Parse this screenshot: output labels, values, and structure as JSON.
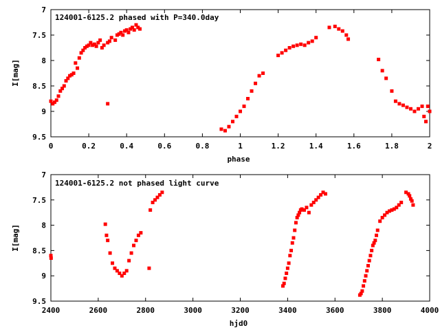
{
  "chart_data": [
    {
      "type": "scatter",
      "title": "124001-6125.2 phased with P=340.0day",
      "xlabel": "phase",
      "ylabel": "I[mag]",
      "xlim": [
        0,
        2
      ],
      "ylim": [
        7,
        9.5
      ],
      "y_inverted": true,
      "xticks": [
        "0",
        "0.2",
        "0.4",
        "0.6",
        "0.8",
        "1",
        "1.2",
        "1.4",
        "1.6",
        "1.8",
        "2"
      ],
      "yticks": [
        "7",
        "7.5",
        "8",
        "8.5",
        "9",
        "9.5"
      ],
      "grid": false,
      "marker_color": "#ff0000",
      "series": [
        {
          "x": [
            0.0,
            0.01,
            0.02,
            0.03,
            0.04,
            0.05,
            0.06,
            0.07,
            0.08,
            0.09,
            0.1,
            0.11,
            0.12,
            0.13,
            0.14,
            0.15,
            0.16,
            0.17,
            0.18,
            0.19,
            0.2,
            0.21,
            0.22,
            0.23,
            0.24,
            0.25,
            0.26,
            0.27,
            0.28,
            0.3,
            0.31,
            0.32,
            0.34,
            0.35,
            0.36,
            0.37,
            0.38,
            0.39,
            0.4,
            0.41,
            0.42,
            0.43,
            0.44,
            0.45,
            0.46,
            0.47,
            0.3,
            0.9,
            0.92,
            0.94,
            0.96,
            0.98,
            1.0,
            1.02,
            1.04,
            1.06,
            1.08,
            1.1,
            1.12,
            1.2,
            1.22,
            1.24,
            1.26,
            1.28,
            1.3,
            1.32,
            1.34,
            1.36,
            1.38,
            1.4,
            1.47,
            1.5,
            1.52,
            1.54,
            1.56,
            1.57,
            1.73,
            1.75,
            1.77,
            1.8,
            1.82,
            1.84,
            1.86,
            1.88,
            1.9,
            1.92,
            1.94,
            1.96,
            1.97,
            1.98,
            1.99,
            2.0
          ],
          "y": [
            8.8,
            8.85,
            8.82,
            8.78,
            8.7,
            8.6,
            8.55,
            8.5,
            8.4,
            8.35,
            8.3,
            8.28,
            8.25,
            8.05,
            8.15,
            7.95,
            7.85,
            7.8,
            7.75,
            7.72,
            7.7,
            7.65,
            7.7,
            7.68,
            7.72,
            7.65,
            7.6,
            7.75,
            7.7,
            7.65,
            7.62,
            7.55,
            7.6,
            7.5,
            7.48,
            7.45,
            7.5,
            7.42,
            7.4,
            7.45,
            7.38,
            7.35,
            7.4,
            7.3,
            7.35,
            7.38,
            8.85,
            9.35,
            9.38,
            9.3,
            9.2,
            9.1,
            9.0,
            8.9,
            8.75,
            8.6,
            8.45,
            8.3,
            8.25,
            7.9,
            7.85,
            7.8,
            7.75,
            7.72,
            7.7,
            7.68,
            7.7,
            7.65,
            7.62,
            7.55,
            7.35,
            7.33,
            7.38,
            7.42,
            7.5,
            7.58,
            7.98,
            8.2,
            8.35,
            8.6,
            8.8,
            8.85,
            8.88,
            8.92,
            8.95,
            9.0,
            8.95,
            8.9,
            9.1,
            9.2,
            8.9,
            9.0
          ]
        }
      ]
    },
    {
      "type": "scatter",
      "title": "124001-6125.2 not phased light curve",
      "xlabel": "hjd0",
      "ylabel": "I[mag]",
      "xlim": [
        2400,
        4000
      ],
      "ylim": [
        7,
        9.5
      ],
      "y_inverted": true,
      "xticks": [
        "2400",
        "2600",
        "2800",
        "3000",
        "3200",
        "3400",
        "3600",
        "3800",
        "4000"
      ],
      "yticks": [
        "7",
        "7.5",
        "8",
        "8.5",
        "9",
        "9.5"
      ],
      "grid": false,
      "marker_color": "#ff0000",
      "series": [
        {
          "x": [
            2400,
            2401,
            2630,
            2635,
            2640,
            2650,
            2660,
            2670,
            2680,
            2690,
            2700,
            2710,
            2720,
            2730,
            2740,
            2750,
            2760,
            2770,
            2780,
            2820,
            2830,
            2840,
            2850,
            2860,
            2870,
            2815,
            3380,
            3385,
            3390,
            3395,
            3400,
            3405,
            3410,
            3415,
            3420,
            3425,
            3430,
            3435,
            3440,
            3445,
            3450,
            3455,
            3460,
            3470,
            3480,
            3490,
            3500,
            3510,
            3520,
            3530,
            3540,
            3550,
            3560,
            3705,
            3710,
            3715,
            3720,
            3725,
            3730,
            3735,
            3740,
            3745,
            3750,
            3755,
            3760,
            3765,
            3770,
            3775,
            3780,
            3790,
            3800,
            3810,
            3820,
            3830,
            3840,
            3850,
            3860,
            3870,
            3880,
            3900,
            3910,
            3915,
            3920,
            3925,
            3930
          ],
          "y": [
            8.6,
            8.65,
            7.98,
            8.2,
            8.3,
            8.55,
            8.75,
            8.85,
            8.9,
            8.95,
            9.0,
            8.95,
            8.9,
            8.7,
            8.55,
            8.4,
            8.3,
            8.2,
            8.15,
            7.7,
            7.55,
            7.5,
            7.45,
            7.4,
            7.35,
            8.85,
            9.2,
            9.15,
            9.05,
            8.95,
            8.85,
            8.75,
            8.6,
            8.5,
            8.35,
            8.25,
            8.1,
            7.95,
            7.85,
            7.8,
            7.75,
            7.7,
            7.68,
            7.7,
            7.65,
            7.75,
            7.6,
            7.55,
            7.5,
            7.45,
            7.4,
            7.35,
            7.38,
            9.38,
            9.35,
            9.3,
            9.2,
            9.1,
            9.0,
            8.9,
            8.8,
            8.7,
            8.6,
            8.5,
            8.4,
            8.35,
            8.3,
            8.2,
            8.1,
            7.92,
            7.85,
            7.8,
            7.75,
            7.72,
            7.7,
            7.68,
            7.65,
            7.6,
            7.55,
            7.35,
            7.38,
            7.42,
            7.48,
            7.52,
            7.6
          ]
        }
      ]
    }
  ]
}
